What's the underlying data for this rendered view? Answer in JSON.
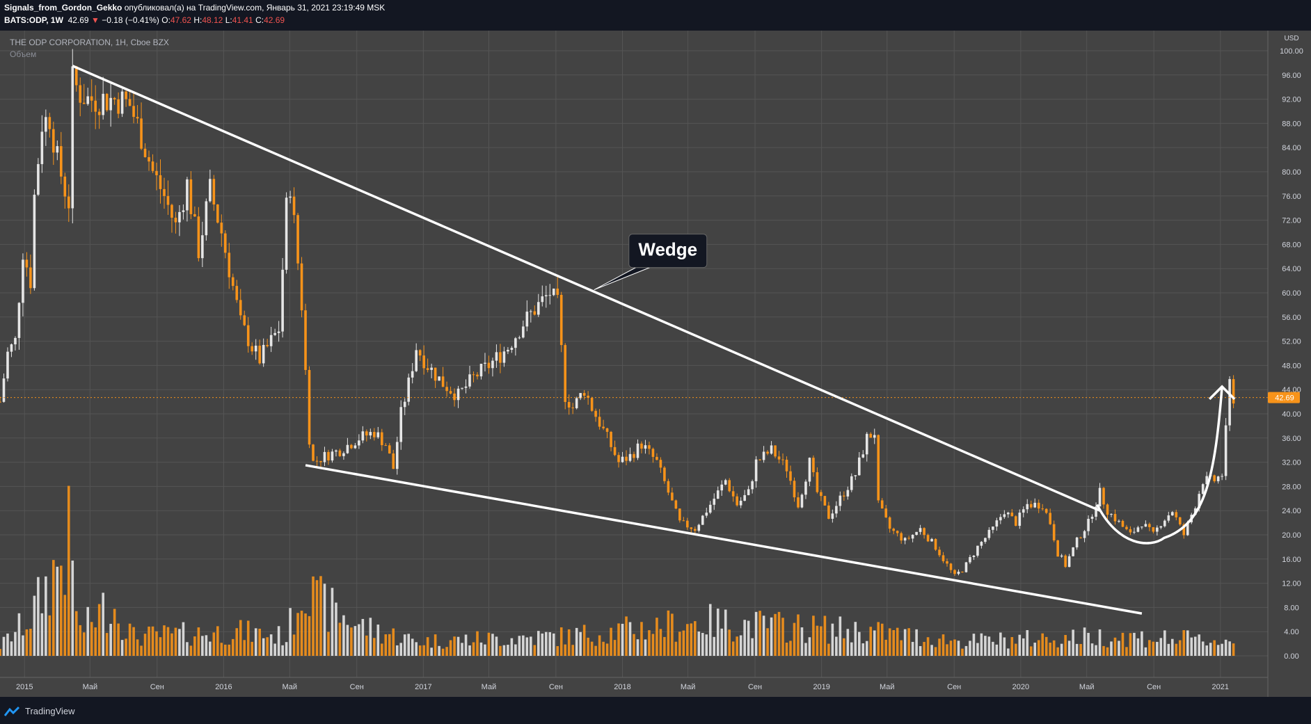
{
  "header": {
    "author": "Signals_from_Gordon_Gekko",
    "published_text": "опубликовал(а) на TradingView.com, Январь 31, 2021 23:19:49 MSK",
    "symbol": "BATS:ODP, 1W",
    "last": "42.69",
    "change_arrow": "▼",
    "change": "−0.18 (−0.41%)",
    "o_label": "O:",
    "o": "47.62",
    "h_label": "H:",
    "h": "48.12",
    "l_label": "L:",
    "l": "41.41",
    "c_label": "C:",
    "c": "42.69"
  },
  "legend": {
    "title": "THE ODP CORPORATION, 1H, Cboe BZX",
    "volume_label": "Объем"
  },
  "footer": {
    "brand": "TradingView",
    "logo_icon": "tradingview-logo-icon"
  },
  "colors": {
    "up": "#e6e6e6",
    "down": "#f7931a",
    "background": "#434343",
    "grid": "#555555",
    "price_tag": "#f7931a"
  },
  "chart_data": {
    "type": "candlestick",
    "title": "",
    "currency": "USD",
    "current_price": "42.69",
    "ylim": [
      -2,
      102
    ],
    "y_ticks": [
      "100.00",
      "96.00",
      "92.00",
      "88.00",
      "84.00",
      "80.00",
      "76.00",
      "72.00",
      "68.00",
      "64.00",
      "60.00",
      "56.00",
      "52.00",
      "48.00",
      "44.00",
      "40.00",
      "36.00",
      "32.00",
      "28.00",
      "24.00",
      "20.00",
      "16.00",
      "12.00",
      "8.00",
      "4.00",
      "0.00"
    ],
    "x_ticks": [
      "2015",
      "Май",
      "Сен",
      "2016",
      "Май",
      "Сен",
      "2017",
      "Май",
      "Сен",
      "2018",
      "Май",
      "Сен",
      "2019",
      "Май",
      "Сен",
      "2020",
      "Май",
      "Сен",
      "2021"
    ],
    "grid": true,
    "x_range": [
      "2014-11-17",
      "2021-03-29"
    ],
    "price_path": [
      [
        "2014-11-17",
        42
      ],
      [
        "2014-12-01",
        50
      ],
      [
        "2014-12-15",
        52
      ],
      [
        "2014-12-29",
        67
      ],
      [
        "2015-01-12",
        62
      ],
      [
        "2015-01-19",
        76
      ],
      [
        "2015-02-02",
        88
      ],
      [
        "2015-02-16",
        89
      ],
      [
        "2015-03-02",
        82
      ],
      [
        "2015-03-16",
        77
      ],
      [
        "2015-03-23",
        75
      ],
      [
        "2015-03-30",
        95
      ],
      [
        "2015-04-13",
        93
      ],
      [
        "2015-04-27",
        92
      ],
      [
        "2015-05-25",
        92
      ],
      [
        "2015-06-22",
        92
      ],
      [
        "2015-07-13",
        91
      ],
      [
        "2015-08-03",
        86
      ],
      [
        "2015-08-24",
        80
      ],
      [
        "2015-09-14",
        76
      ],
      [
        "2015-10-05",
        71
      ],
      [
        "2015-10-26",
        78
      ],
      [
        "2015-11-16",
        67
      ],
      [
        "2015-12-07",
        77
      ],
      [
        "2015-12-28",
        70
      ],
      [
        "2016-01-11",
        64
      ],
      [
        "2016-02-01",
        55
      ],
      [
        "2016-02-22",
        51
      ],
      [
        "2016-03-07",
        49
      ],
      [
        "2016-03-28",
        52
      ],
      [
        "2016-04-11",
        54
      ],
      [
        "2016-04-25",
        74
      ],
      [
        "2016-05-02",
        78
      ],
      [
        "2016-05-16",
        65
      ],
      [
        "2016-05-23",
        58
      ],
      [
        "2016-06-06",
        36
      ],
      [
        "2016-06-13",
        32
      ],
      [
        "2016-07-04",
        33
      ],
      [
        "2016-08-01",
        34
      ],
      [
        "2016-09-05",
        36
      ],
      [
        "2016-10-03",
        37
      ],
      [
        "2016-10-24",
        35
      ],
      [
        "2016-11-07",
        31
      ],
      [
        "2016-11-21",
        40
      ],
      [
        "2016-12-05",
        45
      ],
      [
        "2016-12-19",
        51
      ],
      [
        "2017-01-09",
        48
      ],
      [
        "2017-02-06",
        45
      ],
      [
        "2017-03-06",
        43
      ],
      [
        "2017-04-03",
        46
      ],
      [
        "2017-05-01",
        48
      ],
      [
        "2017-06-05",
        51
      ],
      [
        "2017-07-03",
        55
      ],
      [
        "2017-07-31",
        58
      ],
      [
        "2017-08-21",
        60
      ],
      [
        "2017-09-04",
        58
      ],
      [
        "2017-09-18",
        43
      ],
      [
        "2017-10-02",
        41
      ],
      [
        "2017-10-23",
        44
      ],
      [
        "2017-11-06",
        41
      ],
      [
        "2017-12-04",
        36
      ],
      [
        "2017-12-25",
        32
      ],
      [
        "2018-01-15",
        33
      ],
      [
        "2018-02-05",
        35
      ],
      [
        "2018-03-05",
        32
      ],
      [
        "2018-03-26",
        27
      ],
      [
        "2018-04-16",
        22
      ],
      [
        "2018-05-14",
        21
      ],
      [
        "2018-06-11",
        25
      ],
      [
        "2018-07-09",
        29
      ],
      [
        "2018-07-30",
        25
      ],
      [
        "2018-08-20",
        27
      ],
      [
        "2018-09-03",
        32
      ],
      [
        "2018-10-01",
        34
      ],
      [
        "2018-10-29",
        31
      ],
      [
        "2018-11-19",
        25
      ],
      [
        "2018-12-10",
        32
      ],
      [
        "2018-12-24",
        27
      ],
      [
        "2019-01-14",
        23
      ],
      [
        "2019-02-04",
        26
      ],
      [
        "2019-03-04",
        30
      ],
      [
        "2019-03-25",
        36
      ],
      [
        "2019-04-08",
        37
      ],
      [
        "2019-04-15",
        25
      ],
      [
        "2019-05-06",
        21
      ],
      [
        "2019-06-03",
        19
      ],
      [
        "2019-07-01",
        21
      ],
      [
        "2019-07-29",
        18
      ],
      [
        "2019-08-19",
        15
      ],
      [
        "2019-09-02",
        13
      ],
      [
        "2019-09-23",
        15
      ],
      [
        "2019-10-14",
        18
      ],
      [
        "2019-11-11",
        21
      ],
      [
        "2019-12-02",
        24
      ],
      [
        "2019-12-23",
        22
      ],
      [
        "2020-01-13",
        25
      ],
      [
        "2020-02-10",
        25
      ],
      [
        "2020-02-24",
        22
      ],
      [
        "2020-03-09",
        17
      ],
      [
        "2020-03-23",
        15
      ],
      [
        "2020-04-13",
        19
      ],
      [
        "2020-05-04",
        22
      ],
      [
        "2020-05-25",
        27
      ],
      [
        "2020-06-08",
        24
      ],
      [
        "2020-06-29",
        22
      ],
      [
        "2020-07-20",
        20
      ],
      [
        "2020-08-10",
        22
      ],
      [
        "2020-08-31",
        20
      ],
      [
        "2020-09-14",
        22
      ],
      [
        "2020-10-05",
        24
      ],
      [
        "2020-10-26",
        20
      ],
      [
        "2020-11-16",
        25
      ],
      [
        "2020-11-30",
        29
      ],
      [
        "2020-12-21",
        29
      ],
      [
        "2021-01-04",
        30
      ],
      [
        "2021-01-11",
        37
      ],
      [
        "2021-01-18",
        45
      ],
      [
        "2021-01-25",
        42.69
      ]
    ],
    "volume_path": [
      [
        "2014-11-17",
        2
      ],
      [
        "2015-01-12",
        8
      ],
      [
        "2015-03-23",
        23
      ],
      [
        "2015-04-13",
        5
      ],
      [
        "2015-06-08",
        11
      ],
      [
        "2015-07-20",
        4
      ],
      [
        "2016-01-25",
        5
      ],
      [
        "2016-04-25",
        4
      ],
      [
        "2016-06-13",
        21
      ],
      [
        "2016-06-20",
        11
      ],
      [
        "2016-09-12",
        6
      ],
      [
        "2016-12-19",
        3
      ],
      [
        "2017-08-28",
        4
      ],
      [
        "2017-09-18",
        4
      ],
      [
        "2018-05-28",
        7
      ],
      [
        "2019-04-01",
        5
      ],
      [
        "2019-09-16",
        3
      ],
      [
        "2020-06-01",
        4
      ],
      [
        "2020-07-06",
        4
      ],
      [
        "2021-01-18",
        3
      ]
    ],
    "trendlines": [
      {
        "from": [
          "2015-03-30",
          97.5
        ],
        "to": [
          "2020-05-25",
          24
        ]
      },
      {
        "from": [
          "2016-05-30",
          31.5
        ],
        "to": [
          "2020-08-10",
          7
        ]
      }
    ],
    "annotations": [
      {
        "type": "callout",
        "text": "Wedge"
      },
      {
        "type": "arrow-curve",
        "direction": "up"
      }
    ]
  }
}
